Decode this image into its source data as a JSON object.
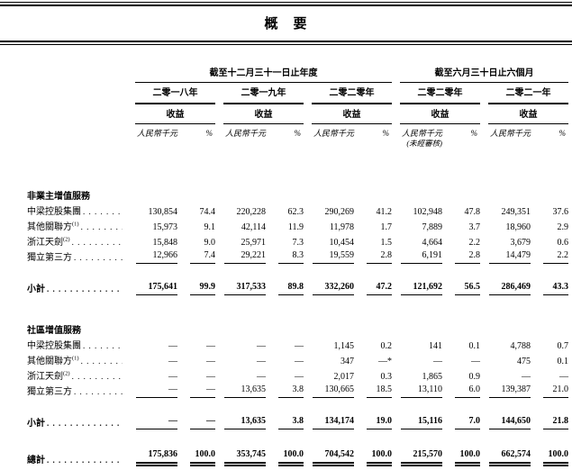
{
  "page": {
    "title": "概　要"
  },
  "table": {
    "header": {
      "groups": [
        {
          "title": "截至十二月三十一日止年度",
          "periods": [
            "二零一八年",
            "二零一九年",
            "二零二零年"
          ]
        },
        {
          "title": "截至六月三十日止六個月",
          "periods": [
            "二零二零年",
            "二零二一年"
          ]
        }
      ],
      "revenue_label": "收益",
      "unit_label": "人民幣千元",
      "percent_label": "%",
      "unaudited_label": "(未經審核)",
      "unaudited_period_index": 3
    },
    "sections": [
      {
        "title": "非業主增值服務",
        "rows": [
          {
            "label": "中梁控股集團",
            "sup": "",
            "values": [
              [
                "130,854",
                "74.4"
              ],
              [
                "220,228",
                "62.3"
              ],
              [
                "290,269",
                "41.2"
              ],
              [
                "102,948",
                "47.8"
              ],
              [
                "249,351",
                "37.6"
              ]
            ]
          },
          {
            "label": "其他關聯方",
            "sup": "(1)",
            "values": [
              [
                "15,973",
                "9.1"
              ],
              [
                "42,114",
                "11.9"
              ],
              [
                "11,978",
                "1.7"
              ],
              [
                "7,889",
                "3.7"
              ],
              [
                "18,960",
                "2.9"
              ]
            ]
          },
          {
            "label": "浙江天劍",
            "sup": "(2)",
            "values": [
              [
                "15,848",
                "9.0"
              ],
              [
                "25,971",
                "7.3"
              ],
              [
                "10,454",
                "1.5"
              ],
              [
                "4,664",
                "2.2"
              ],
              [
                "3,679",
                "0.6"
              ]
            ]
          },
          {
            "label": "獨立第三方",
            "sup": "",
            "values": [
              [
                "12,966",
                "7.4"
              ],
              [
                "29,221",
                "8.3"
              ],
              [
                "19,559",
                "2.8"
              ],
              [
                "6,191",
                "2.8"
              ],
              [
                "14,479",
                "2.2"
              ]
            ]
          }
        ],
        "subtotal": {
          "label": "小計",
          "values": [
            [
              "175,641",
              "99.9"
            ],
            [
              "317,533",
              "89.8"
            ],
            [
              "332,260",
              "47.2"
            ],
            [
              "121,692",
              "56.5"
            ],
            [
              "286,469",
              "43.3"
            ]
          ]
        }
      },
      {
        "title": "社區增值服務",
        "rows": [
          {
            "label": "中梁控股集團",
            "sup": "",
            "values": [
              [
                "—",
                "—"
              ],
              [
                "—",
                "—"
              ],
              [
                "1,145",
                "0.2"
              ],
              [
                "141",
                "0.1"
              ],
              [
                "4,788",
                "0.7"
              ]
            ]
          },
          {
            "label": "其他關聯方",
            "sup": "(1)",
            "values": [
              [
                "—",
                "—"
              ],
              [
                "—",
                "—"
              ],
              [
                "347",
                "—*"
              ],
              [
                "—",
                "—"
              ],
              [
                "475",
                "0.1"
              ]
            ]
          },
          {
            "label": "浙江天劍",
            "sup": "(2)",
            "values": [
              [
                "—",
                "—"
              ],
              [
                "—",
                "—"
              ],
              [
                "2,017",
                "0.3"
              ],
              [
                "1,865",
                "0.9"
              ],
              [
                "—",
                "—"
              ]
            ]
          },
          {
            "label": "獨立第三方",
            "sup": "",
            "values": [
              [
                "—",
                "—"
              ],
              [
                "13,635",
                "3.8"
              ],
              [
                "130,665",
                "18.5"
              ],
              [
                "13,110",
                "6.0"
              ],
              [
                "139,387",
                "21.0"
              ]
            ]
          }
        ],
        "subtotal": {
          "label": "小計",
          "values": [
            [
              "—",
              "—"
            ],
            [
              "13,635",
              "3.8"
            ],
            [
              "134,174",
              "19.0"
            ],
            [
              "15,116",
              "7.0"
            ],
            [
              "144,650",
              "21.8"
            ]
          ]
        }
      }
    ],
    "total": {
      "label": "總計",
      "values": [
        [
          "175,836",
          "100.0"
        ],
        [
          "353,745",
          "100.0"
        ],
        [
          "704,542",
          "100.0"
        ],
        [
          "215,570",
          "100.0"
        ],
        [
          "662,574",
          "100.0"
        ]
      ]
    }
  }
}
